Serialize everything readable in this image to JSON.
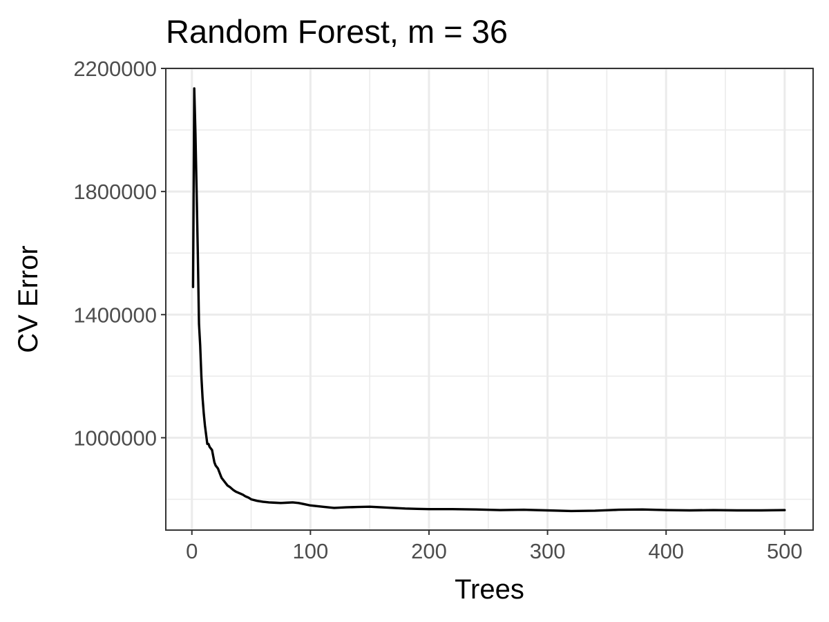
{
  "chart_data": {
    "type": "line",
    "title": "Random Forest, m = 36",
    "xlabel": "Trees",
    "ylabel": "CV Error",
    "xlim": [
      -22,
      524
    ],
    "ylim": [
      700000,
      2200000
    ],
    "x_ticks": [
      0,
      100,
      200,
      300,
      400,
      500
    ],
    "x_tick_labels": [
      "0",
      "100",
      "200",
      "300",
      "400",
      "500"
    ],
    "x_minor_ticks": [
      50,
      150,
      250,
      350,
      450
    ],
    "y_ticks": [
      1000000,
      1400000,
      1800000,
      2200000
    ],
    "y_tick_labels": [
      "1000000",
      "1400000",
      "1800000",
      "2200000"
    ],
    "y_minor_ticks": [
      800000,
      1200000,
      1600000,
      2000000
    ],
    "grid": true,
    "legend": "none",
    "series": [
      {
        "color": "#000000",
        "x": [
          1,
          2,
          3,
          4,
          5,
          6,
          7,
          8,
          9,
          10,
          11,
          12,
          13,
          14,
          15,
          17,
          19,
          20,
          22,
          24,
          25,
          27,
          29,
          30,
          32,
          35,
          37,
          40,
          43,
          45,
          48,
          50,
          55,
          60,
          65,
          70,
          75,
          80,
          85,
          90,
          95,
          100,
          110,
          120,
          130,
          140,
          150,
          160,
          170,
          180,
          190,
          200,
          220,
          240,
          260,
          280,
          300,
          320,
          340,
          360,
          380,
          400,
          420,
          440,
          460,
          480,
          500
        ],
        "y": [
          1490000,
          2135000,
          1990000,
          1800000,
          1600000,
          1370000,
          1300000,
          1200000,
          1130000,
          1080000,
          1040000,
          1010000,
          980000,
          980000,
          970000,
          960000,
          920000,
          910000,
          900000,
          880000,
          870000,
          860000,
          850000,
          845000,
          840000,
          830000,
          825000,
          820000,
          815000,
          810000,
          805000,
          800000,
          795000,
          792000,
          790000,
          789000,
          788000,
          789000,
          790000,
          788000,
          784000,
          780000,
          776000,
          772000,
          774000,
          775000,
          776000,
          774000,
          772000,
          770000,
          769000,
          768000,
          768000,
          767000,
          765000,
          766000,
          764000,
          762000,
          763000,
          766000,
          767000,
          765000,
          764000,
          765000,
          764000,
          764000,
          765000
        ]
      }
    ]
  }
}
